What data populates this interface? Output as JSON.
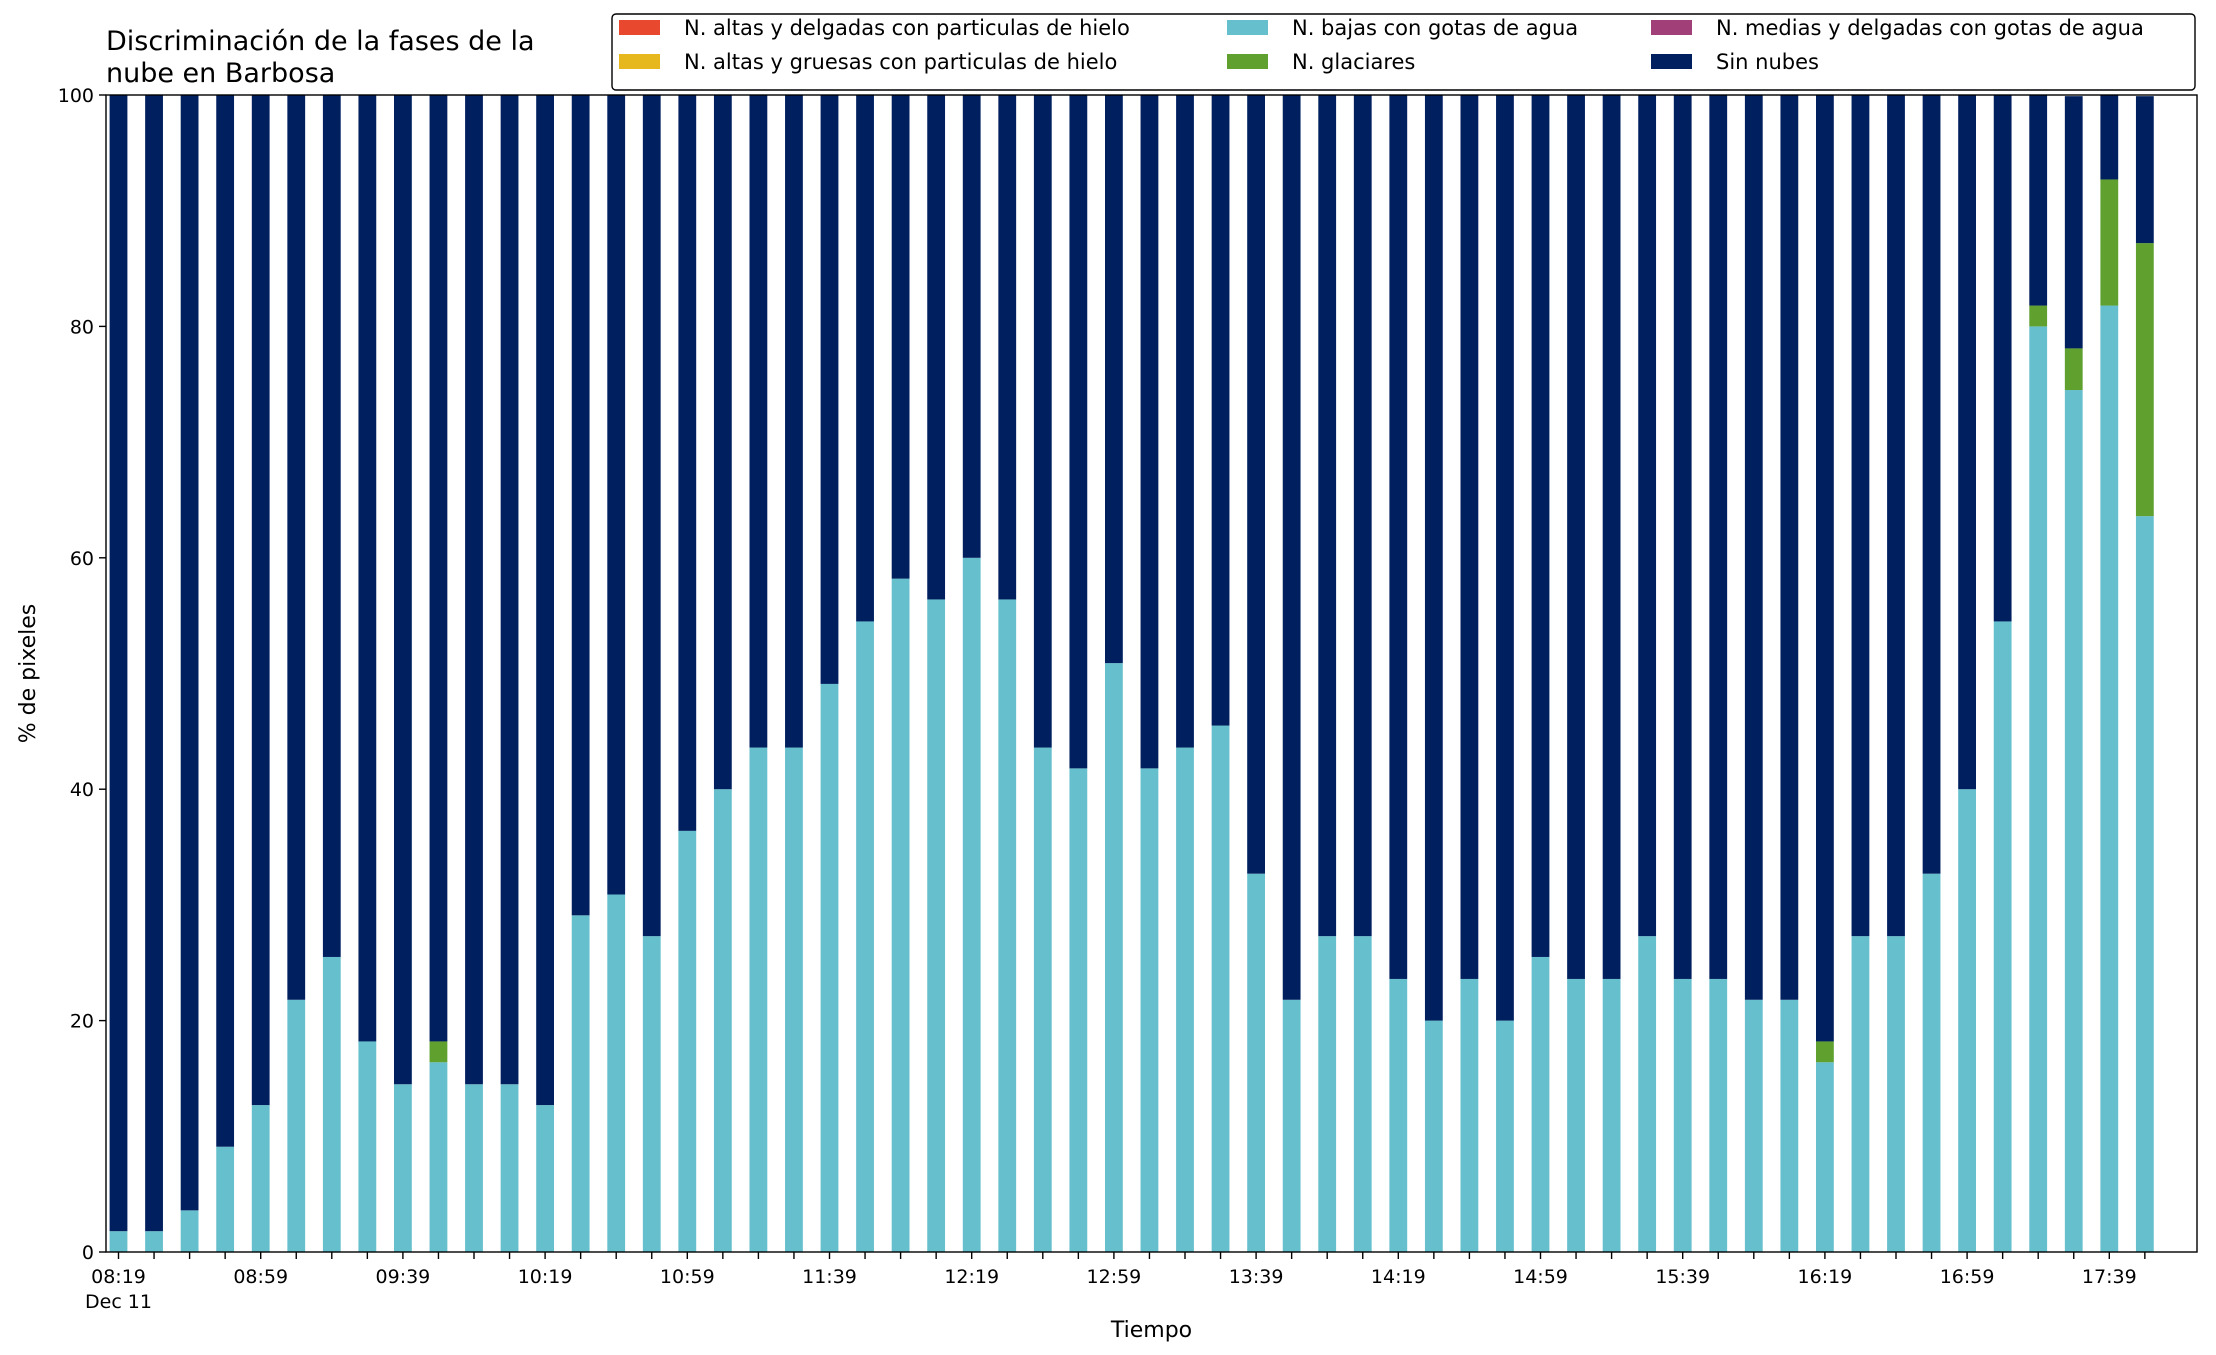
{
  "chart_data": {
    "type": "bar",
    "stacked": true,
    "title": "Discriminación de la fases de la\nnube en Barbosa",
    "xlabel": "Tiempo",
    "ylabel": "% de pixeles",
    "ylim": [
      0,
      100
    ],
    "yticks": [
      0,
      20,
      40,
      60,
      80,
      100
    ],
    "grid": false,
    "legend_position": "top-right",
    "xtick_labels": [
      {
        "index": 0,
        "label": "08:19",
        "sublabel": "Dec 11"
      },
      {
        "index": 4,
        "label": "08:59"
      },
      {
        "index": 8,
        "label": "09:39"
      },
      {
        "index": 12,
        "label": "10:19"
      },
      {
        "index": 16,
        "label": "10:59"
      },
      {
        "index": 20,
        "label": "11:39"
      },
      {
        "index": 24,
        "label": "12:19"
      },
      {
        "index": 28,
        "label": "12:59"
      },
      {
        "index": 32,
        "label": "13:39"
      },
      {
        "index": 36,
        "label": "14:19"
      },
      {
        "index": 40,
        "label": "14:59"
      },
      {
        "index": 44,
        "label": "15:39"
      },
      {
        "index": 48,
        "label": "16:19"
      },
      {
        "index": 52,
        "label": "16:59"
      },
      {
        "index": 56,
        "label": "17:39"
      }
    ],
    "series": [
      {
        "name": "N. altas y delgadas con particulas de hielo",
        "color": "#e8482e",
        "values": [
          0,
          0,
          0,
          0,
          0,
          0,
          0,
          0,
          0,
          0,
          0,
          0,
          0,
          0,
          0,
          0,
          0,
          0,
          0,
          0,
          0,
          0,
          0,
          0,
          0,
          0,
          0,
          0,
          0,
          0,
          0,
          0,
          0,
          0,
          0,
          0,
          0,
          0,
          0,
          0,
          0,
          0,
          0,
          0,
          0,
          0,
          0,
          0,
          0,
          0,
          0,
          0,
          0,
          0,
          0,
          0,
          0,
          0
        ]
      },
      {
        "name": "N. altas y gruesas con particulas de hielo",
        "color": "#e6b81e",
        "values": [
          0,
          0,
          0,
          0,
          0,
          0,
          0,
          0,
          0,
          0,
          0,
          0,
          0,
          0,
          0,
          0,
          0,
          0,
          0,
          0,
          0,
          0,
          0,
          0,
          0,
          0,
          0,
          0,
          0,
          0,
          0,
          0,
          0,
          0,
          0,
          0,
          0,
          0,
          0,
          0,
          0,
          0,
          0,
          0,
          0,
          0,
          0,
          0,
          0,
          0,
          0,
          0,
          0,
          0,
          0,
          0,
          0,
          0
        ]
      },
      {
        "name": "N. bajas con gotas de agua",
        "color": "#66bfcc",
        "values": [
          1.8,
          1.8,
          3.6,
          9.1,
          12.7,
          21.8,
          25.5,
          18.2,
          14.5,
          16.4,
          14.5,
          14.5,
          12.7,
          29.1,
          30.9,
          27.3,
          36.4,
          40.0,
          43.6,
          43.6,
          49.1,
          54.5,
          58.2,
          56.4,
          60.0,
          56.4,
          43.6,
          41.8,
          50.9,
          41.8,
          43.6,
          45.5,
          32.7,
          21.8,
          27.3,
          27.3,
          23.6,
          20.0,
          23.6,
          20.0,
          25.5,
          23.6,
          23.6,
          27.3,
          23.6,
          23.6,
          21.8,
          21.8,
          16.4,
          27.3,
          27.3,
          32.7,
          40.0,
          54.5,
          80.0,
          74.5,
          81.8,
          63.6
        ]
      },
      {
        "name": "N. glaciares",
        "color": "#5fa02e",
        "values": [
          0,
          0,
          0,
          0,
          0,
          0,
          0,
          0,
          0,
          1.8,
          0,
          0,
          0,
          0,
          0,
          0,
          0,
          0,
          0,
          0,
          0,
          0,
          0,
          0,
          0,
          0,
          0,
          0,
          0,
          0,
          0,
          0,
          0,
          0,
          0,
          0,
          0,
          0,
          0,
          0,
          0,
          0,
          0,
          0,
          0,
          0,
          0,
          0,
          1.8,
          0,
          0,
          0,
          0,
          0,
          1.8,
          3.6,
          10.9,
          23.6
        ]
      },
      {
        "name": "N. medias y delgadas con gotas de agua",
        "color": "#a13f78",
        "values": [
          0,
          0,
          0,
          0,
          0,
          0,
          0,
          0,
          0,
          0,
          0,
          0,
          0,
          0,
          0,
          0,
          0,
          0,
          0,
          0,
          0,
          0,
          0,
          0,
          0,
          0,
          0,
          0,
          0,
          0,
          0,
          0,
          0,
          0,
          0,
          0,
          0,
          0,
          0,
          0,
          0,
          0,
          0,
          0,
          0,
          0,
          0,
          0,
          0,
          0,
          0,
          0,
          0,
          0,
          0,
          0,
          0,
          0
        ]
      },
      {
        "name": "Sin nubes",
        "color": "#001f5f",
        "values": [
          98.2,
          98.2,
          96.4,
          90.9,
          87.3,
          78.2,
          74.5,
          81.8,
          85.5,
          81.8,
          85.5,
          85.5,
          87.3,
          70.9,
          69.1,
          72.7,
          63.6,
          60.0,
          56.4,
          56.4,
          50.9,
          45.5,
          41.8,
          43.6,
          40.0,
          43.6,
          56.4,
          58.2,
          49.1,
          58.2,
          56.4,
          54.5,
          67.3,
          78.2,
          72.7,
          72.7,
          76.4,
          80.0,
          76.4,
          80.0,
          74.5,
          76.4,
          76.4,
          72.7,
          76.4,
          76.4,
          78.2,
          78.2,
          81.8,
          72.7,
          72.7,
          67.3,
          60.0,
          45.5,
          18.2,
          21.8,
          7.3,
          12.7
        ]
      }
    ]
  }
}
